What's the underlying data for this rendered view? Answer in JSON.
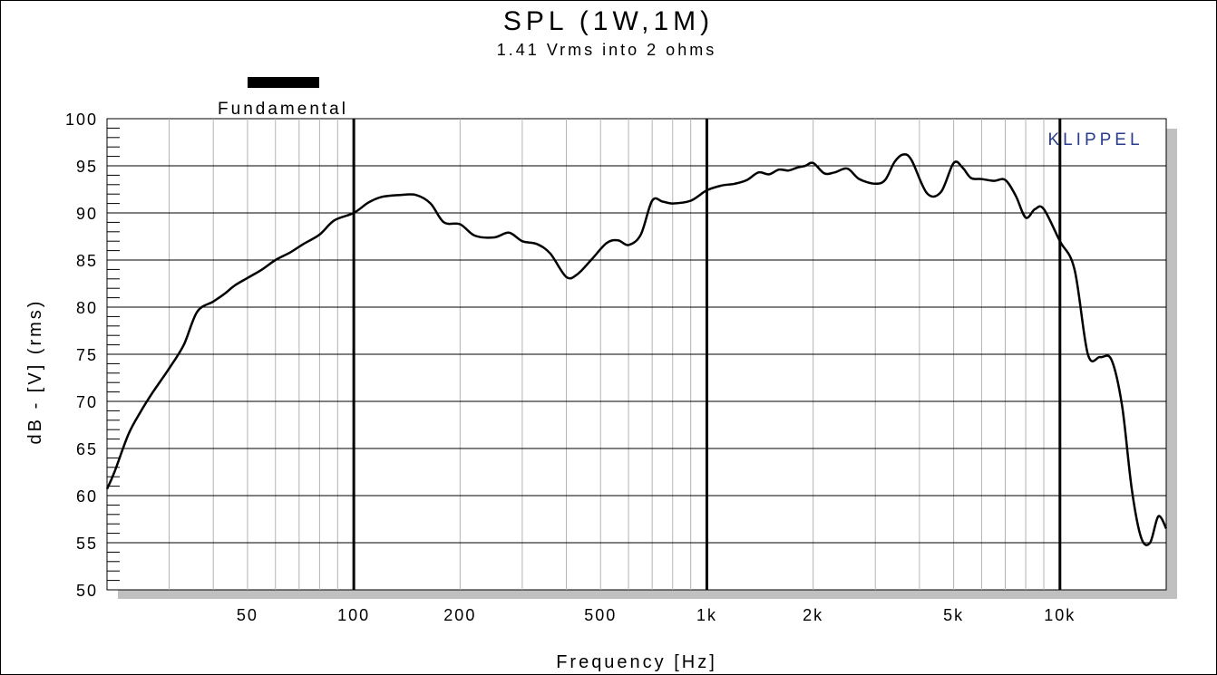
{
  "chart_data": {
    "type": "line",
    "title": "SPL (1W,1M)",
    "subtitle": "1.41 Vrms into 2 ohms",
    "xlabel": "Frequency [Hz]",
    "ylabel": "dB - [V] (rms)",
    "x_scale": "log",
    "xlim": [
      20,
      20000
    ],
    "ylim": [
      50,
      100
    ],
    "y_ticks": [
      100,
      95,
      90,
      85,
      80,
      75,
      70,
      65,
      60,
      55,
      50
    ],
    "x_ticks": [
      {
        "value": 50,
        "label": "50"
      },
      {
        "value": 100,
        "label": "100"
      },
      {
        "value": 200,
        "label": "200"
      },
      {
        "value": 500,
        "label": "500"
      },
      {
        "value": 1000,
        "label": "1k"
      },
      {
        "value": 2000,
        "label": "2k"
      },
      {
        "value": 5000,
        "label": "5k"
      },
      {
        "value": 10000,
        "label": "10k"
      }
    ],
    "grid": true,
    "legend": {
      "position": "top-left",
      "entries": [
        "Fundamental"
      ]
    },
    "brand": "KLIPPEL",
    "series": [
      {
        "name": "Fundamental",
        "color": "#000000",
        "x": [
          20,
          21,
          23,
          25,
          27,
          30,
          33,
          36,
          40,
          43,
          46,
          50,
          55,
          60,
          66,
          72,
          80,
          88,
          100,
          110,
          120,
          135,
          150,
          165,
          180,
          200,
          220,
          250,
          275,
          300,
          330,
          360,
          400,
          430,
          470,
          520,
          560,
          600,
          650,
          700,
          750,
          800,
          900,
          1000,
          1100,
          1200,
          1300,
          1400,
          1500,
          1600,
          1700,
          1800,
          1900,
          2000,
          2150,
          2300,
          2500,
          2700,
          3000,
          3200,
          3400,
          3600,
          3800,
          4200,
          4600,
          5000,
          5300,
          5600,
          6000,
          6500,
          7000,
          7500,
          8000,
          8500,
          9000,
          10000,
          11000,
          12000,
          13000,
          14000,
          15000,
          16000,
          17000,
          18000,
          19000,
          20000
        ],
        "y": [
          60.7,
          62.5,
          66.5,
          69.0,
          71.0,
          73.5,
          76.0,
          79.5,
          80.6,
          81.4,
          82.3,
          83.1,
          84.0,
          85.0,
          85.8,
          86.7,
          87.7,
          89.2,
          90.0,
          91.1,
          91.7,
          91.9,
          91.9,
          91.0,
          89.0,
          88.8,
          87.6,
          87.4,
          87.9,
          87.0,
          86.7,
          85.7,
          83.2,
          83.5,
          85.0,
          86.8,
          87.1,
          86.6,
          87.7,
          91.3,
          91.2,
          91.0,
          91.3,
          92.4,
          92.9,
          93.1,
          93.5,
          94.3,
          94.1,
          94.6,
          94.5,
          94.8,
          95.0,
          95.3,
          94.2,
          94.3,
          94.7,
          93.6,
          93.1,
          93.5,
          95.4,
          96.2,
          95.6,
          92.1,
          92.2,
          95.3,
          94.8,
          93.7,
          93.6,
          93.4,
          93.5,
          91.8,
          89.5,
          90.4,
          90.4,
          87.0,
          84.0,
          75.0,
          74.7,
          74.4,
          69.5,
          60.5,
          55.5,
          55.0,
          57.8,
          56.5
        ]
      }
    ]
  }
}
